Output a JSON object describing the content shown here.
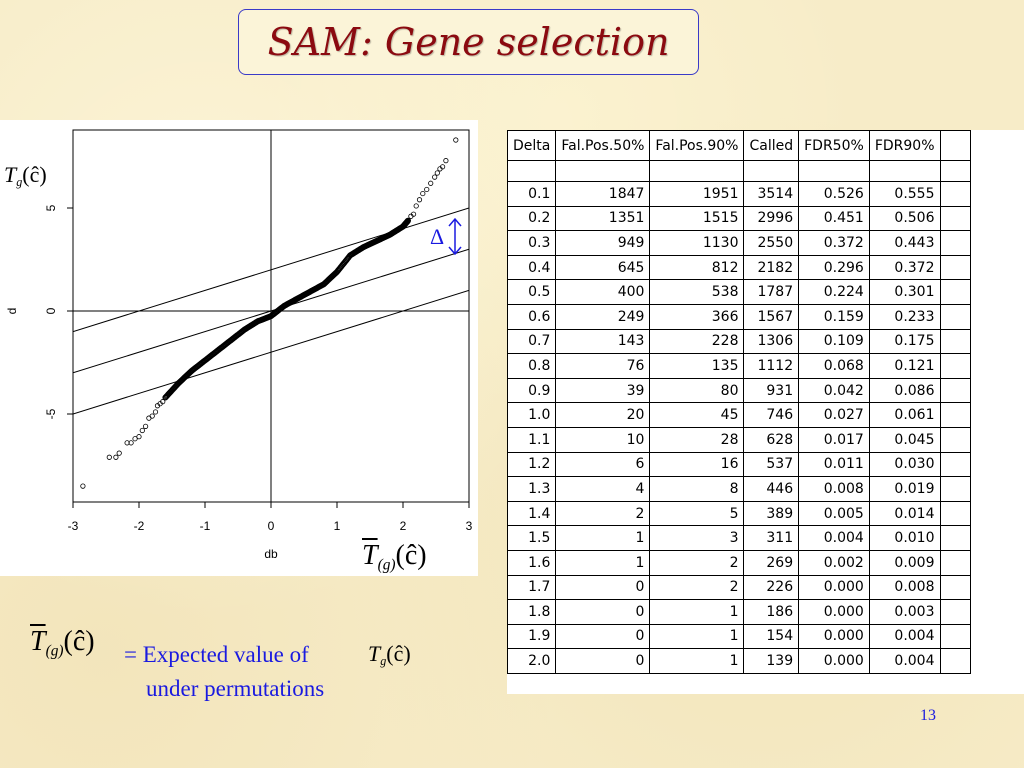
{
  "slide": {
    "title": "SAM: Gene selection",
    "page_number": "13",
    "delta_symbol": "Δ",
    "legend_line1": "= Expected value of",
    "legend_line2": "under permutations"
  },
  "formulas": {
    "T": "T",
    "g": "g",
    "g_paren": "(g)",
    "c_hat_paren": "(ĉ)"
  },
  "colors": {
    "title": "#8b0a10",
    "title_border": "#3a3ac8",
    "text_blue": "#1a1ae0",
    "delta_arrow": "#1a1ae0"
  },
  "chart_data": {
    "type": "scatter",
    "xlabel": "db",
    "ylabel": "d",
    "xlim": [
      -3,
      3
    ],
    "ylim": [
      -9,
      8
    ],
    "xticks": [
      -3,
      -2,
      -1,
      0,
      1,
      2,
      3
    ],
    "yticks": [
      -5,
      0,
      5
    ],
    "points": [
      [
        -2.85,
        -8.5
      ],
      [
        -2.45,
        -7.1
      ],
      [
        -2.35,
        -7.1
      ],
      [
        -2.3,
        -6.9
      ],
      [
        -2.18,
        -6.4
      ],
      [
        -2.12,
        -6.4
      ],
      [
        -2.06,
        -6.2
      ],
      [
        -2.0,
        -6.1
      ],
      [
        -1.95,
        -5.8
      ],
      [
        -1.9,
        -5.6
      ],
      [
        -1.85,
        -5.2
      ],
      [
        -1.8,
        -5.1
      ],
      [
        -1.75,
        -4.9
      ],
      [
        -1.72,
        -4.6
      ],
      [
        -1.68,
        -4.5
      ],
      [
        -1.64,
        -4.4
      ],
      [
        -1.6,
        -4.2
      ],
      [
        2.08,
        4.4
      ],
      [
        2.12,
        4.6
      ],
      [
        2.16,
        4.7
      ],
      [
        2.2,
        5.1
      ],
      [
        2.25,
        5.4
      ],
      [
        2.3,
        5.7
      ],
      [
        2.36,
        5.9
      ],
      [
        2.42,
        6.2
      ],
      [
        2.48,
        6.5
      ],
      [
        2.52,
        6.7
      ],
      [
        2.56,
        6.9
      ],
      [
        2.6,
        7.0
      ],
      [
        2.65,
        7.3
      ],
      [
        2.8,
        8.3
      ]
    ],
    "curve": [
      [
        -1.6,
        -4.2
      ],
      [
        -1.4,
        -3.5
      ],
      [
        -1.2,
        -2.9
      ],
      [
        -1.0,
        -2.4
      ],
      [
        -0.8,
        -1.9
      ],
      [
        -0.6,
        -1.4
      ],
      [
        -0.4,
        -0.9
      ],
      [
        -0.2,
        -0.5
      ],
      [
        0.0,
        -0.25
      ],
      [
        0.2,
        0.25
      ],
      [
        0.4,
        0.6
      ],
      [
        0.6,
        0.95
      ],
      [
        0.8,
        1.3
      ],
      [
        1.0,
        1.9
      ],
      [
        1.2,
        2.7
      ],
      [
        1.4,
        3.1
      ],
      [
        1.6,
        3.4
      ],
      [
        1.8,
        3.7
      ],
      [
        2.0,
        4.1
      ],
      [
        2.08,
        4.4
      ]
    ],
    "lines": [
      {
        "name": "upper",
        "from": [
          -3,
          -1
        ],
        "to": [
          3,
          5
        ]
      },
      {
        "name": "middle",
        "from": [
          -3,
          -3
        ],
        "to": [
          3,
          3
        ]
      },
      {
        "name": "lower",
        "from": [
          -3,
          -5
        ],
        "to": [
          3,
          1
        ]
      }
    ],
    "grid": false
  },
  "table": {
    "headers": [
      "Delta",
      "Fal.Pos.50%",
      "Fal.Pos.90%",
      "Called",
      "FDR50%",
      "FDR90%"
    ],
    "rows": [
      [
        "0.1",
        "1847",
        "1951",
        "3514",
        "0.526",
        "0.555"
      ],
      [
        "0.2",
        "1351",
        "1515",
        "2996",
        "0.451",
        "0.506"
      ],
      [
        "0.3",
        "949",
        "1130",
        "2550",
        "0.372",
        "0.443"
      ],
      [
        "0.4",
        "645",
        "812",
        "2182",
        "0.296",
        "0.372"
      ],
      [
        "0.5",
        "400",
        "538",
        "1787",
        "0.224",
        "0.301"
      ],
      [
        "0.6",
        "249",
        "366",
        "1567",
        "0.159",
        "0.233"
      ],
      [
        "0.7",
        "143",
        "228",
        "1306",
        "0.109",
        "0.175"
      ],
      [
        "0.8",
        "76",
        "135",
        "1112",
        "0.068",
        "0.121"
      ],
      [
        "0.9",
        "39",
        "80",
        "931",
        "0.042",
        "0.086"
      ],
      [
        "1.0",
        "20",
        "45",
        "746",
        "0.027",
        "0.061"
      ],
      [
        "1.1",
        "10",
        "28",
        "628",
        "0.017",
        "0.045"
      ],
      [
        "1.2",
        "6",
        "16",
        "537",
        "0.011",
        "0.030"
      ],
      [
        "1.3",
        "4",
        "8",
        "446",
        "0.008",
        "0.019"
      ],
      [
        "1.4",
        "2",
        "5",
        "389",
        "0.005",
        "0.014"
      ],
      [
        "1.5",
        "1",
        "3",
        "311",
        "0.004",
        "0.010"
      ],
      [
        "1.6",
        "1",
        "2",
        "269",
        "0.002",
        "0.009"
      ],
      [
        "1.7",
        "0",
        "2",
        "226",
        "0.000",
        "0.008"
      ],
      [
        "1.8",
        "0",
        "1",
        "186",
        "0.000",
        "0.003"
      ],
      [
        "1.9",
        "0",
        "1",
        "154",
        "0.000",
        "0.004"
      ],
      [
        "2.0",
        "0",
        "1",
        "139",
        "0.000",
        "0.004"
      ]
    ]
  }
}
